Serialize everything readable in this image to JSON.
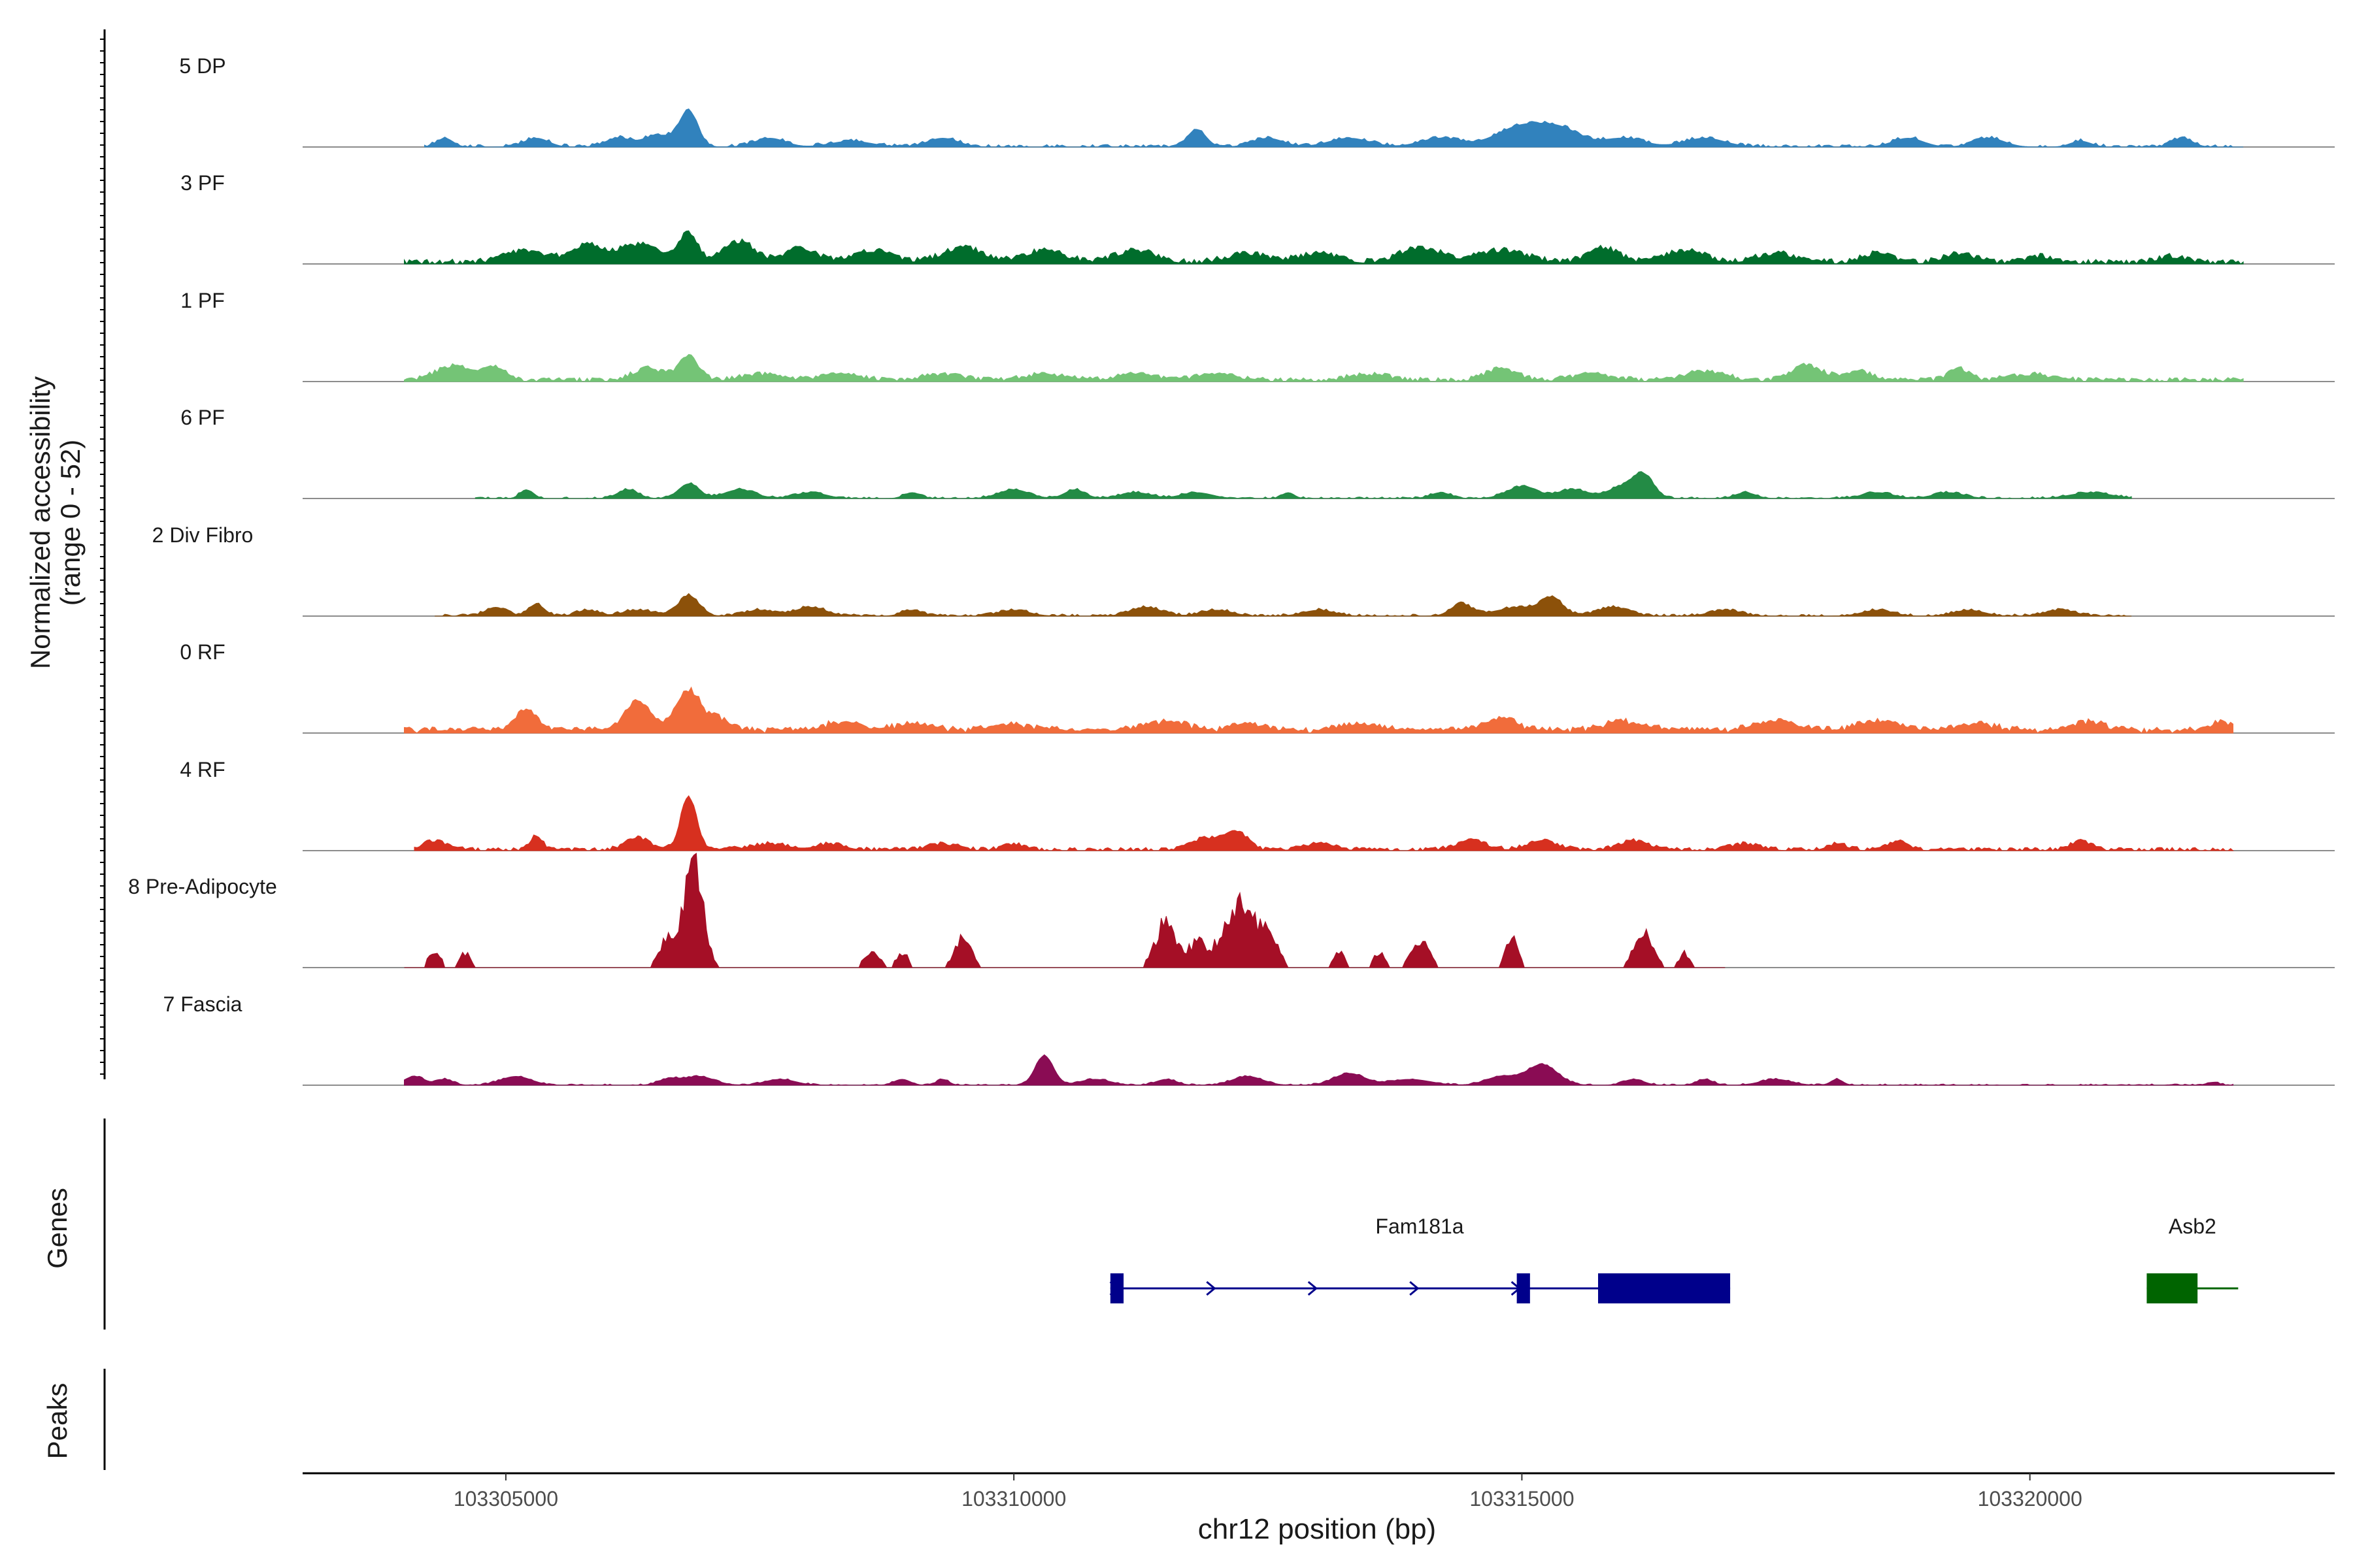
{
  "chart_data": {
    "type": "area",
    "title": "",
    "ylabel_line1": "Normalized accessibility",
    "ylabel_line2": "(range 0 - 52)",
    "ylim": [
      0,
      52
    ],
    "xlabel": "chr12 position (bp)",
    "xlim": [
      103303000,
      103323000
    ],
    "x_ticks": [
      {
        "value": 103305000,
        "label": "103305000"
      },
      {
        "value": 103310000,
        "label": "103310000"
      },
      {
        "value": 103315000,
        "label": "103315000"
      },
      {
        "value": 103320000,
        "label": "103320000"
      }
    ],
    "tracks": [
      {
        "name": "5 DP",
        "color": "#3182bd",
        "start": 103304200,
        "end": 103322100,
        "peaks": [
          [
            103304400,
            3,
            80
          ],
          [
            103305300,
            3,
            120
          ],
          [
            103306100,
            3,
            120
          ],
          [
            103306800,
            12,
            90
          ],
          [
            103306500,
            4,
            150
          ],
          [
            103307600,
            3,
            150
          ],
          [
            103308400,
            2,
            200
          ],
          [
            103309300,
            3,
            150
          ],
          [
            103311800,
            6,
            90
          ],
          [
            103312500,
            3,
            150
          ],
          [
            103313300,
            3,
            200
          ],
          [
            103314200,
            3,
            200
          ],
          [
            103315000,
            7,
            250
          ],
          [
            103315400,
            5,
            200
          ],
          [
            103316000,
            3,
            200
          ],
          [
            103316800,
            3,
            200
          ],
          [
            103318800,
            3,
            150
          ],
          [
            103319600,
            3,
            150
          ],
          [
            103320500,
            2,
            100
          ],
          [
            103321500,
            3,
            100
          ]
        ],
        "base": 0.6,
        "density": 0.45
      },
      {
        "name": "3 PF",
        "color": "#006d2c",
        "start": 103304000,
        "end": 103322100,
        "peaks": [
          [
            103305200,
            4,
            200
          ],
          [
            103305800,
            6,
            150
          ],
          [
            103306300,
            6,
            200
          ],
          [
            103306800,
            10,
            90
          ],
          [
            103307300,
            7,
            150
          ],
          [
            103307900,
            5,
            150
          ],
          [
            103308600,
            4,
            200
          ],
          [
            103309500,
            5,
            200
          ],
          [
            103310300,
            4,
            200
          ],
          [
            103311200,
            4,
            200
          ],
          [
            103312300,
            3,
            200
          ],
          [
            103313000,
            3,
            200
          ],
          [
            103314000,
            5,
            200
          ],
          [
            103314800,
            4,
            250
          ],
          [
            103315800,
            5,
            150
          ],
          [
            103316600,
            4,
            200
          ],
          [
            103317500,
            3,
            200
          ],
          [
            103318500,
            3,
            150
          ],
          [
            103319300,
            3,
            150
          ],
          [
            103320100,
            2,
            150
          ],
          [
            103321400,
            2,
            150
          ]
        ],
        "base": 1.2,
        "density": 0.7
      },
      {
        "name": "1 PF",
        "color": "#74c476",
        "start": 103304000,
        "end": 103322100,
        "peaks": [
          [
            103304500,
            5,
            180
          ],
          [
            103304900,
            4,
            100
          ],
          [
            103306400,
            4,
            150
          ],
          [
            103306800,
            8,
            100
          ],
          [
            103307500,
            2,
            200
          ],
          [
            103308300,
            2,
            200
          ],
          [
            103309300,
            2,
            200
          ],
          [
            103310300,
            2,
            200
          ],
          [
            103311200,
            2,
            200
          ],
          [
            103312000,
            2,
            200
          ],
          [
            103313500,
            2,
            200
          ],
          [
            103314800,
            4,
            150
          ],
          [
            103315700,
            2,
            200
          ],
          [
            103316800,
            3,
            200
          ],
          [
            103317800,
            5,
            150
          ],
          [
            103318300,
            3,
            150
          ],
          [
            103319300,
            4,
            100
          ],
          [
            103320000,
            2,
            200
          ]
        ],
        "base": 1.0,
        "density": 0.8
      },
      {
        "name": "6 PF",
        "color": "#238b45",
        "start": 103304700,
        "end": 103321000,
        "peaks": [
          [
            103305200,
            3,
            60
          ],
          [
            103306200,
            3,
            100
          ],
          [
            103306800,
            5,
            100
          ],
          [
            103307300,
            3,
            150
          ],
          [
            103308000,
            2,
            150
          ],
          [
            103309000,
            2,
            80
          ],
          [
            103310000,
            3,
            150
          ],
          [
            103310600,
            3,
            100
          ],
          [
            103311200,
            2,
            150
          ],
          [
            103311800,
            2,
            150
          ],
          [
            103312700,
            2,
            60
          ],
          [
            103314200,
            2,
            100
          ],
          [
            103315000,
            4,
            150
          ],
          [
            103315500,
            3,
            150
          ],
          [
            103316000,
            4,
            150
          ],
          [
            103316200,
            7,
            100
          ],
          [
            103317200,
            2,
            100
          ],
          [
            103318500,
            2,
            150
          ],
          [
            103319200,
            2,
            150
          ],
          [
            103320600,
            2,
            200
          ]
        ],
        "base": 0.4,
        "density": 0.45
      },
      {
        "name": "2 Div Fibro",
        "color": "#8c510a",
        "start": 103304300,
        "end": 103321000,
        "peaks": [
          [
            103304900,
            3,
            100
          ],
          [
            103305300,
            4,
            80
          ],
          [
            103305800,
            2,
            100
          ],
          [
            103306300,
            2,
            150
          ],
          [
            103306800,
            7,
            100
          ],
          [
            103307500,
            2,
            150
          ],
          [
            103308000,
            3,
            150
          ],
          [
            103309000,
            2,
            100
          ],
          [
            103310000,
            2,
            150
          ],
          [
            103311300,
            3,
            150
          ],
          [
            103312000,
            2,
            150
          ],
          [
            103313000,
            2,
            150
          ],
          [
            103314400,
            4,
            100
          ],
          [
            103315000,
            3,
            250
          ],
          [
            103315300,
            5,
            100
          ],
          [
            103315900,
            3,
            150
          ],
          [
            103317000,
            2,
            150
          ],
          [
            103318500,
            2,
            150
          ],
          [
            103319400,
            2,
            150
          ],
          [
            103320300,
            2,
            150
          ]
        ],
        "base": 0.5,
        "density": 0.5
      },
      {
        "name": "0 RF",
        "color": "#f16c3b",
        "start": 103304000,
        "end": 103322000,
        "peaks": [
          [
            103305200,
            7,
            100
          ],
          [
            103306300,
            10,
            120
          ],
          [
            103306800,
            14,
            120
          ],
          [
            103307100,
            4,
            100
          ],
          [
            103308300,
            3,
            150
          ],
          [
            103309000,
            2,
            200
          ],
          [
            103310000,
            2,
            200
          ],
          [
            103311500,
            3,
            200
          ],
          [
            103312300,
            2,
            150
          ],
          [
            103313400,
            2,
            200
          ],
          [
            103314800,
            4,
            150
          ],
          [
            103316000,
            3,
            200
          ],
          [
            103317500,
            3,
            200
          ],
          [
            103318500,
            3,
            200
          ],
          [
            103319500,
            2,
            200
          ],
          [
            103320600,
            3,
            150
          ],
          [
            103321900,
            3,
            100
          ]
        ],
        "base": 1.5,
        "density": 0.95
      },
      {
        "name": "4 RF",
        "color": "#d7301f",
        "start": 103304100,
        "end": 103322000,
        "peaks": [
          [
            103304300,
            3,
            120
          ],
          [
            103305300,
            5,
            60
          ],
          [
            103306300,
            4,
            120
          ],
          [
            103306800,
            18,
            80
          ],
          [
            103307600,
            2,
            200
          ],
          [
            103308200,
            2,
            150
          ],
          [
            103309300,
            2,
            150
          ],
          [
            103310000,
            2,
            100
          ],
          [
            103311900,
            4,
            150
          ],
          [
            103312200,
            6,
            100
          ],
          [
            103313000,
            2,
            150
          ],
          [
            103314500,
            3,
            150
          ],
          [
            103315200,
            3,
            150
          ],
          [
            103316100,
            3,
            150
          ],
          [
            103317200,
            2,
            150
          ],
          [
            103318100,
            2,
            100
          ],
          [
            103318700,
            3,
            100
          ],
          [
            103320500,
            3,
            100
          ]
        ],
        "base": 0.8,
        "density": 0.7
      },
      {
        "name": "8 Pre-Adipocyte",
        "color": "#a50f26",
        "start": 103304000,
        "end": 103317000,
        "peaks": [
          [
            103304300,
            6,
            60
          ],
          [
            103304600,
            5,
            50
          ],
          [
            103306600,
            11,
            80
          ],
          [
            103306850,
            36,
            90
          ],
          [
            103308600,
            5,
            80
          ],
          [
            103308900,
            5,
            60
          ],
          [
            103309500,
            10,
            80
          ],
          [
            103311500,
            16,
            100
          ],
          [
            103311800,
            8,
            80
          ],
          [
            103312200,
            22,
            150
          ],
          [
            103312500,
            10,
            100
          ],
          [
            103313200,
            5,
            60
          ],
          [
            103313600,
            5,
            60
          ],
          [
            103314000,
            10,
            80
          ],
          [
            103314900,
            11,
            60
          ],
          [
            103316200,
            11,
            100
          ],
          [
            103316600,
            5,
            50
          ]
        ],
        "base": 0,
        "density": 0,
        "blocky": true
      },
      {
        "name": "7 Fascia",
        "color": "#8a0c54",
        "start": 103304000,
        "end": 103322000,
        "peaks": [
          [
            103304100,
            3,
            100
          ],
          [
            103304400,
            2,
            80
          ],
          [
            103305100,
            3,
            150
          ],
          [
            103306600,
            2,
            100
          ],
          [
            103306900,
            3,
            150
          ],
          [
            103307700,
            2,
            150
          ],
          [
            103308900,
            2,
            80
          ],
          [
            103309300,
            2,
            60
          ],
          [
            103310300,
            10,
            90
          ],
          [
            103310800,
            2,
            150
          ],
          [
            103311500,
            2,
            100
          ],
          [
            103312300,
            3,
            150
          ],
          [
            103313300,
            4,
            150
          ],
          [
            103313900,
            2,
            200
          ],
          [
            103314800,
            3,
            150
          ],
          [
            103315200,
            7,
            150
          ],
          [
            103316100,
            2,
            100
          ],
          [
            103316800,
            2,
            80
          ],
          [
            103317500,
            2,
            150
          ],
          [
            103318100,
            2,
            60
          ],
          [
            103321800,
            1,
            60
          ]
        ],
        "base": 0.3,
        "density": 0.35
      }
    ],
    "genes_label": "Genes",
    "peaks_label": "Peaks",
    "genes": [
      {
        "name": "Fam181a",
        "color": "#00008b",
        "start": 103310950,
        "end": 103317050,
        "exons": [
          [
            103310950,
            103311080,
            "narrow"
          ],
          [
            103314950,
            103315080,
            "narrow"
          ],
          [
            103315750,
            103317050,
            "wide"
          ]
        ],
        "arrows": [
          103311000,
          103311950,
          103312950,
          103313950,
          103314950
        ]
      },
      {
        "name": "Asb2",
        "color": "#006400",
        "start": 103321150,
        "end": 103322050,
        "exons": [
          [
            103321150,
            103321650,
            "wide"
          ]
        ],
        "arrows": []
      }
    ]
  }
}
